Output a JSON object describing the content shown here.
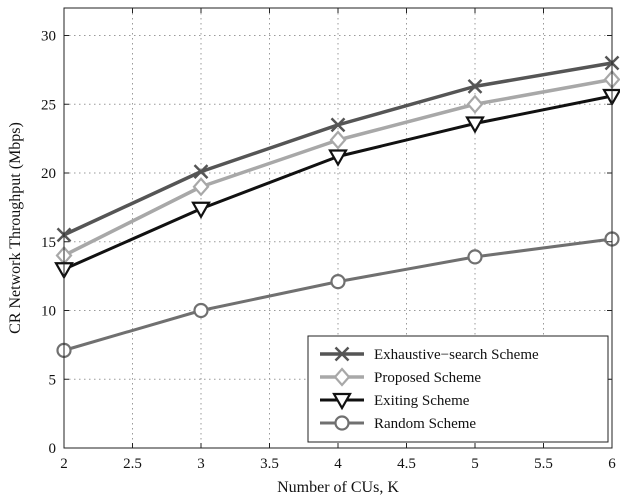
{
  "chart_data": {
    "type": "line",
    "xlabel": "Number of CUs, K",
    "ylabel": "CR Network Throughput (Mbps)",
    "xlim": [
      2,
      6
    ],
    "ylim": [
      0,
      32
    ],
    "xticks": [
      "2",
      "2.5",
      "3",
      "3.5",
      "4",
      "4.5",
      "5",
      "5.5",
      "6"
    ],
    "yticks": [
      "0",
      "5",
      "10",
      "15",
      "20",
      "25",
      "30"
    ],
    "grid": true,
    "legend_position": "bottom-right",
    "x": [
      2,
      3,
      4,
      5,
      6
    ],
    "series": [
      {
        "name": "Exhaustive−search Scheme",
        "values": [
          15.5,
          20.1,
          23.5,
          26.3,
          28.0
        ],
        "color": "#555555",
        "marker": "x",
        "width": 3.5
      },
      {
        "name": "Proposed Scheme",
        "values": [
          14.0,
          19.0,
          22.4,
          25.0,
          26.8
        ],
        "color": "#a8a8a8",
        "marker": "diamond",
        "width": 3.5
      },
      {
        "name": "Exiting Scheme",
        "values": [
          13.0,
          17.4,
          21.2,
          23.6,
          25.6
        ],
        "color": "#111111",
        "marker": "triangle-down",
        "width": 3
      },
      {
        "name": "Random Scheme",
        "values": [
          7.1,
          10.0,
          12.1,
          13.9,
          15.2
        ],
        "color": "#707070",
        "marker": "circle",
        "width": 3
      }
    ]
  }
}
